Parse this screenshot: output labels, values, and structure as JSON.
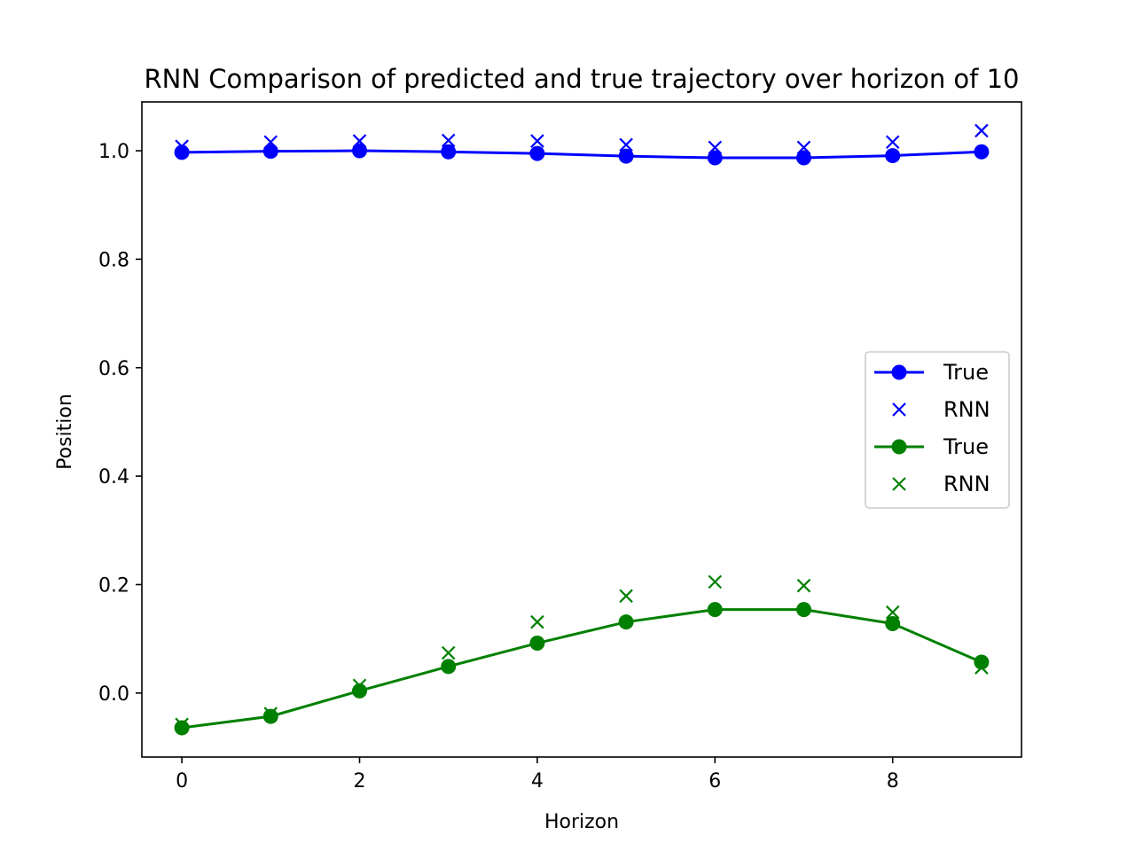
{
  "chart_data": {
    "type": "line",
    "title": "RNN Comparison of predicted and true trajectory over horizon of 10",
    "xlabel": "Horizon",
    "ylabel": "Position",
    "xlim": [
      -0.45,
      9.45
    ],
    "ylim": [
      -0.118,
      1.09
    ],
    "xticks": [
      0,
      2,
      4,
      6,
      8
    ],
    "xtick_labels": [
      "0",
      "2",
      "4",
      "6",
      "8"
    ],
    "yticks": [
      0.0,
      0.2,
      0.4,
      0.6,
      0.8,
      1.0
    ],
    "ytick_labels": [
      "0.0",
      "0.2",
      "0.4",
      "0.6",
      "0.8",
      "1.0"
    ],
    "grid": false,
    "legend_position": "center-right",
    "x": [
      0,
      1,
      2,
      3,
      4,
      5,
      6,
      7,
      8,
      9
    ],
    "series": [
      {
        "name": "True",
        "color": "#0000ff",
        "marker": "circle",
        "line": true,
        "values": [
          0.997,
          0.999,
          1.0,
          0.998,
          0.995,
          0.99,
          0.987,
          0.987,
          0.991,
          0.998
        ]
      },
      {
        "name": "RNN",
        "color": "#0000ff",
        "marker": "x",
        "line": false,
        "values": [
          1.008,
          1.016,
          1.018,
          1.019,
          1.018,
          1.011,
          1.006,
          1.006,
          1.016,
          1.037
        ]
      },
      {
        "name": "True",
        "color": "#008000",
        "marker": "circle",
        "line": true,
        "values": [
          -0.064,
          -0.043,
          0.004,
          0.049,
          0.092,
          0.131,
          0.154,
          0.154,
          0.128,
          0.057
        ]
      },
      {
        "name": "RNN",
        "color": "#008000",
        "marker": "x",
        "line": false,
        "values": [
          -0.058,
          -0.038,
          0.014,
          0.074,
          0.131,
          0.179,
          0.205,
          0.198,
          0.149,
          0.047
        ]
      }
    ]
  }
}
